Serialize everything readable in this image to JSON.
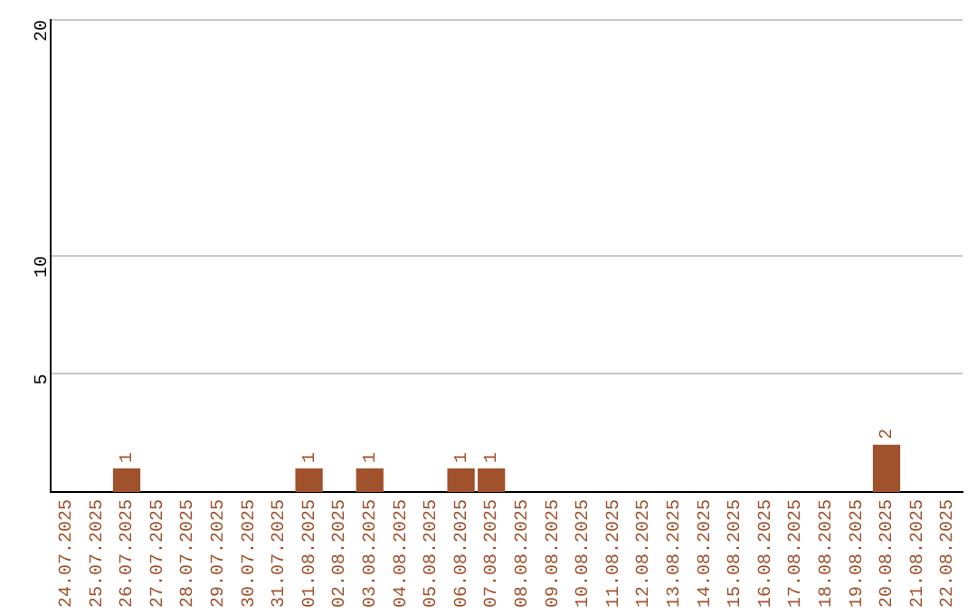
{
  "chart_data": {
    "type": "bar",
    "categories": [
      "24.07.2025",
      "25.07.2025",
      "26.07.2025",
      "27.07.2025",
      "28.07.2025",
      "29.07.2025",
      "30.07.2025",
      "31.07.2025",
      "01.08.2025",
      "02.08.2025",
      "03.08.2025",
      "04.08.2025",
      "05.08.2025",
      "06.08.2025",
      "07.08.2025",
      "08.08.2025",
      "09.08.2025",
      "10.08.2025",
      "11.08.2025",
      "12.08.2025",
      "13.08.2025",
      "14.08.2025",
      "15.08.2025",
      "16.08.2025",
      "17.08.2025",
      "18.08.2025",
      "19.08.2025",
      "20.08.2025",
      "21.08.2025",
      "22.08.2025"
    ],
    "values": [
      0,
      0,
      1,
      0,
      0,
      0,
      0,
      0,
      1,
      0,
      1,
      0,
      0,
      1,
      1,
      0,
      0,
      0,
      0,
      0,
      0,
      0,
      0,
      0,
      0,
      0,
      0,
      2,
      0,
      0
    ],
    "value_labels": [
      null,
      null,
      "1",
      null,
      null,
      null,
      null,
      null,
      "1",
      null,
      "1",
      null,
      null,
      "1",
      "1",
      null,
      null,
      null,
      null,
      null,
      null,
      null,
      null,
      null,
      null,
      null,
      null,
      "2",
      null,
      null
    ],
    "color": "#a0522d",
    "ylim": [
      0,
      20
    ],
    "yticks": [
      5,
      10,
      20
    ],
    "grid": "y",
    "legend": false
  }
}
